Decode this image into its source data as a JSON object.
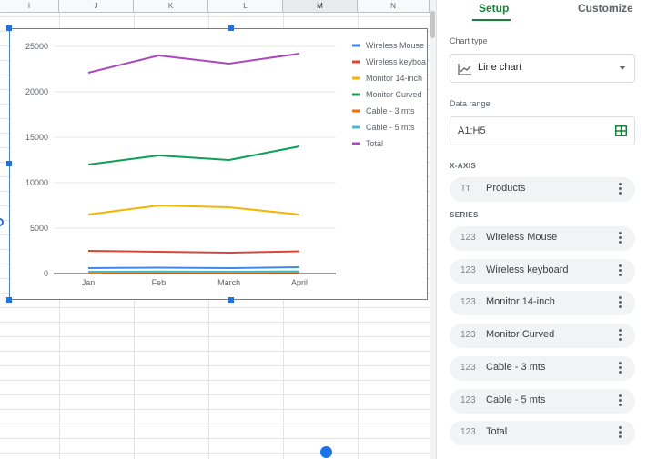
{
  "columns": [
    "I",
    "J",
    "K",
    "L",
    "M",
    "N"
  ],
  "active_column": "M",
  "chart_data": {
    "type": "line",
    "categories": [
      "Jan",
      "Feb",
      "March",
      "April"
    ],
    "ylim": [
      0,
      25000
    ],
    "yticks": [
      0,
      5000,
      10000,
      15000,
      20000,
      25000
    ],
    "grid": true,
    "legend_position": "right",
    "series": [
      {
        "name": "Wireless Mouse",
        "color": "#4285f4",
        "values": [
          600,
          650,
          600,
          700
        ]
      },
      {
        "name": "Wireless keyboa",
        "color": "#db4437",
        "values": [
          2500,
          2400,
          2300,
          2450
        ]
      },
      {
        "name": "Monitor 14-inch",
        "color": "#f4b400",
        "values": [
          6500,
          7500,
          7300,
          6500
        ]
      },
      {
        "name": "Monitor Curved",
        "color": "#0f9d58",
        "values": [
          12000,
          13000,
          12500,
          14000
        ]
      },
      {
        "name": "Cable - 3 mts",
        "color": "#ff6d01",
        "values": [
          100,
          120,
          110,
          130
        ]
      },
      {
        "name": "Cable - 5 mts",
        "color": "#46bdc6",
        "values": [
          200,
          230,
          210,
          240
        ]
      },
      {
        "name": "Total",
        "color": "#ab47bc",
        "values": [
          22100,
          24000,
          23100,
          24200
        ]
      }
    ]
  },
  "panel": {
    "tabs": {
      "setup": "Setup",
      "customize": "Customize"
    },
    "chart_type_label": "Chart type",
    "chart_type_value": "Line chart",
    "data_range_label": "Data range",
    "data_range_value": "A1:H5",
    "xaxis_label": "X-AXIS",
    "xaxis_item": {
      "kind": "Tт",
      "name": "Products"
    },
    "series_label": "SERIES",
    "series_items": [
      {
        "kind": "123",
        "name": "Wireless Mouse"
      },
      {
        "kind": "123",
        "name": "Wireless keyboard"
      },
      {
        "kind": "123",
        "name": "Monitor 14-inch"
      },
      {
        "kind": "123",
        "name": "Monitor Curved"
      },
      {
        "kind": "123",
        "name": "Cable - 3 mts"
      },
      {
        "kind": "123",
        "name": "Cable - 5 mts"
      },
      {
        "kind": "123",
        "name": "Total"
      }
    ],
    "accent_color": "#188038",
    "selection_color": "#1a73e8"
  }
}
